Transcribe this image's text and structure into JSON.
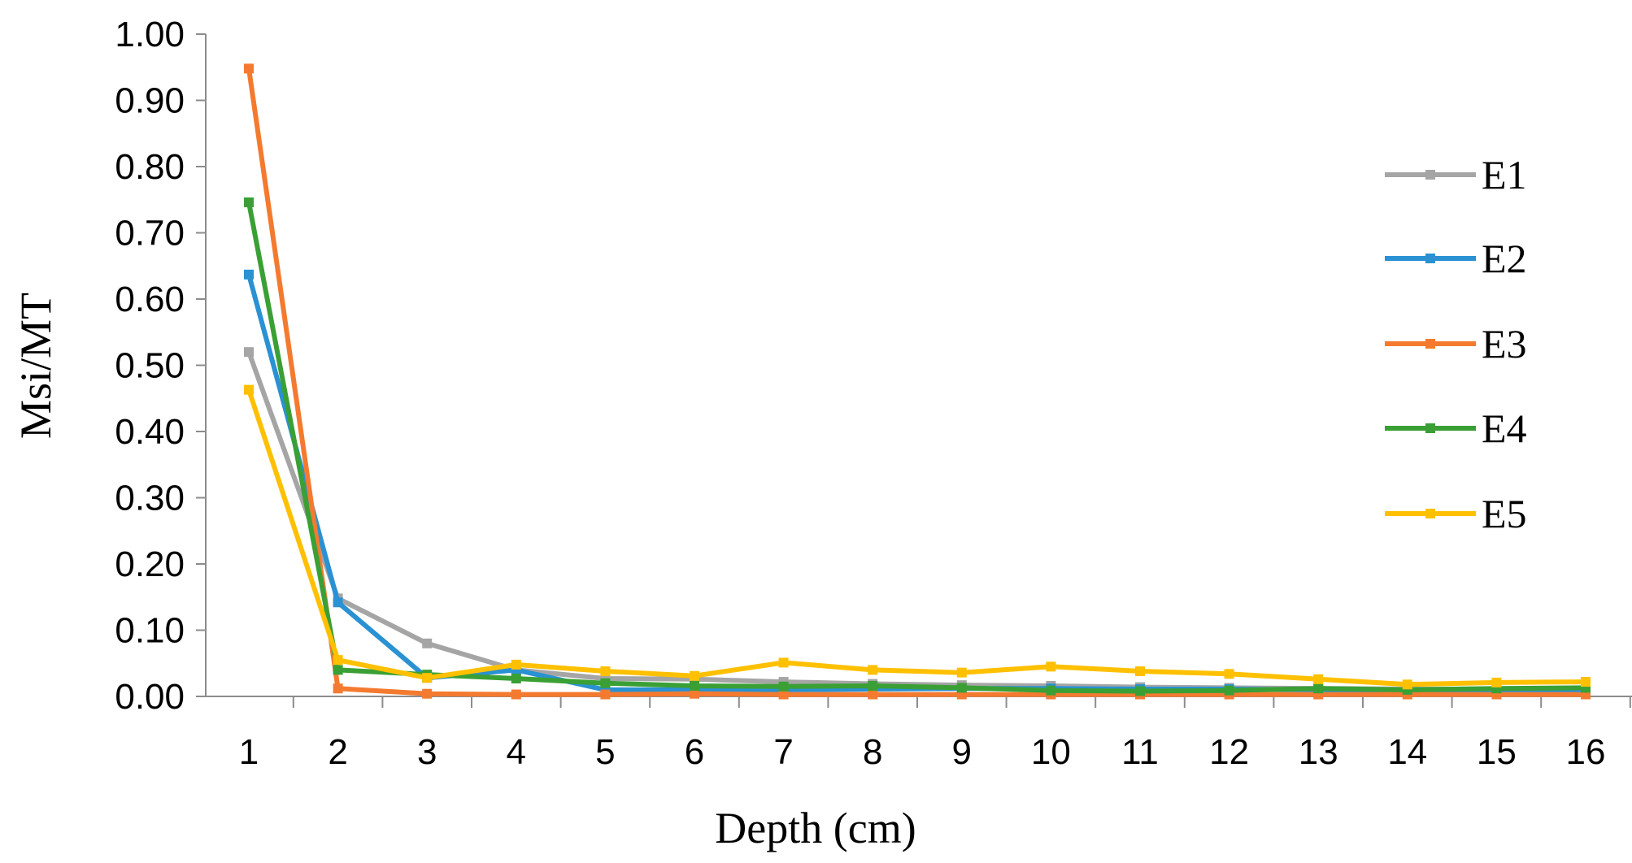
{
  "chart_data": {
    "type": "line",
    "title": "",
    "xlabel": "Depth (cm)",
    "ylabel": "Msi/MT",
    "ylim": [
      0,
      1
    ],
    "yticks": [
      "0.00",
      "0.10",
      "0.20",
      "0.30",
      "0.40",
      "0.50",
      "0.60",
      "0.70",
      "0.80",
      "0.90",
      "1.00"
    ],
    "x": [
      "1",
      "2",
      "3",
      "4",
      "5",
      "6",
      "7",
      "8",
      "9",
      "10",
      "11",
      "12",
      "13",
      "14",
      "15",
      "16"
    ],
    "grid": false,
    "legend_position": "right",
    "series": [
      {
        "name": "E1",
        "color": "#A5A5A5",
        "values": [
          0.52,
          0.148,
          0.08,
          0.04,
          0.027,
          0.026,
          0.022,
          0.019,
          0.017,
          0.016,
          0.014,
          0.013,
          0.012,
          0.011,
          0.011,
          0.011
        ]
      },
      {
        "name": "E2",
        "color": "#2A91D2",
        "values": [
          0.637,
          0.142,
          0.028,
          0.04,
          0.01,
          0.01,
          0.01,
          0.011,
          0.012,
          0.012,
          0.011,
          0.011,
          0.01,
          0.008,
          0.008,
          0.008
        ]
      },
      {
        "name": "E3",
        "color": "#F47A30",
        "values": [
          0.948,
          0.012,
          0.004,
          0.003,
          0.003,
          0.004,
          0.003,
          0.003,
          0.003,
          0.003,
          0.003,
          0.003,
          0.003,
          0.003,
          0.003,
          0.003
        ]
      },
      {
        "name": "E4",
        "color": "#3AA035",
        "values": [
          0.746,
          0.04,
          0.033,
          0.027,
          0.02,
          0.016,
          0.015,
          0.016,
          0.013,
          0.009,
          0.008,
          0.009,
          0.012,
          0.01,
          0.012,
          0.013
        ]
      },
      {
        "name": "E5",
        "color": "#FFC000",
        "values": [
          0.463,
          0.055,
          0.028,
          0.048,
          0.038,
          0.031,
          0.051,
          0.04,
          0.036,
          0.045,
          0.038,
          0.034,
          0.026,
          0.018,
          0.021,
          0.022
        ]
      }
    ]
  }
}
